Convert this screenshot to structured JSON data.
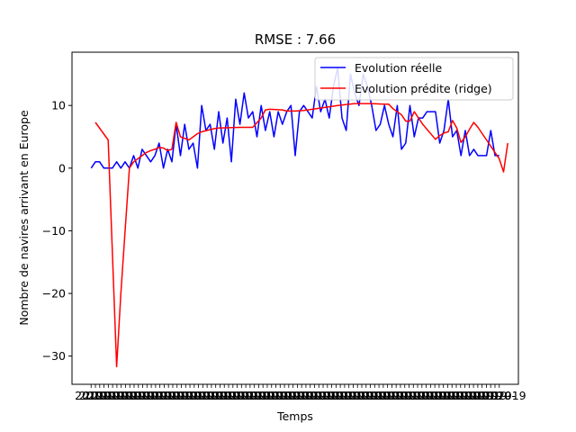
{
  "chart_data": {
    "type": "line",
    "title": "RMSE : 7.66",
    "xlabel": "Temps",
    "ylabel": "Nombre de navires arrivant en Europe",
    "ylim": [
      -34.5,
      18.5
    ],
    "yticks": [
      {
        "value": 10,
        "label": "10"
      },
      {
        "value": 0,
        "label": "0"
      },
      {
        "value": -10,
        "label": "−10"
      },
      {
        "value": -20,
        "label": "−20"
      },
      {
        "value": -30,
        "label": "−30"
      }
    ],
    "xlim": [
      -4.5,
      100.5
    ],
    "xtick_count": 96,
    "xtick_labels_visible": [
      "2019-",
      "2019"
    ],
    "grid": false,
    "legend_position": "top-right",
    "series": [
      {
        "name": "Evolution réelle",
        "color": "#0000ff",
        "x": [
          0,
          1,
          2,
          3,
          4,
          5,
          6,
          7,
          8,
          9,
          10,
          11,
          12,
          13,
          14,
          15,
          16,
          17,
          18,
          19,
          20,
          21,
          22,
          23,
          24,
          25,
          26,
          27,
          28,
          29,
          30,
          31,
          32,
          33,
          34,
          35,
          36,
          37,
          38,
          39,
          40,
          41,
          42,
          43,
          44,
          45,
          46,
          47,
          48,
          49,
          50,
          51,
          52,
          53,
          54,
          55,
          56,
          57,
          58,
          59,
          60,
          61,
          62,
          63,
          64,
          65,
          66,
          67,
          68,
          69,
          70,
          71,
          72,
          73,
          74,
          75,
          76,
          77,
          78,
          79,
          80,
          81,
          82,
          83,
          84,
          85,
          86,
          87,
          88,
          89,
          90,
          91,
          92,
          93,
          94,
          95,
          96
        ],
        "y": [
          0,
          1,
          1,
          0,
          0,
          0,
          1,
          0,
          1,
          0,
          2,
          0,
          3,
          2,
          1,
          2,
          4,
          0,
          3,
          1,
          7,
          2,
          7,
          3,
          4,
          0,
          10,
          6,
          7,
          3,
          9,
          4,
          8,
          1,
          11,
          7,
          12,
          8,
          9,
          5,
          10,
          6,
          9,
          5,
          9,
          7,
          9,
          10,
          2,
          9,
          10,
          9,
          8,
          13,
          9,
          11,
          8,
          13,
          16,
          8,
          6,
          15,
          12,
          10,
          15,
          13,
          10,
          6,
          7,
          10,
          7,
          5,
          10,
          3,
          4,
          10,
          5,
          8,
          8,
          9,
          9,
          9,
          4,
          6,
          11,
          5,
          6,
          2,
          6,
          2,
          3,
          2,
          2,
          2,
          6,
          2,
          2
        ]
      },
      {
        "name": "Evolution prédite (ridge)",
        "color": "#ff0000",
        "x": [
          1,
          4,
          6,
          7,
          8,
          9,
          10,
          11,
          12,
          13,
          14,
          15,
          16,
          17,
          18,
          19,
          20,
          21,
          23,
          25,
          26,
          29,
          30,
          35,
          38,
          40,
          41,
          42,
          45,
          46,
          47,
          48,
          50,
          53,
          58,
          62,
          63,
          66,
          69,
          70,
          71,
          72,
          73,
          74,
          75,
          76,
          77,
          78,
          81,
          82,
          83,
          84,
          85,
          86,
          87,
          88,
          89,
          90,
          91,
          92,
          93,
          94,
          95,
          96,
          97,
          98
        ],
        "y": [
          7.3,
          4.5,
          -31.7,
          -20,
          -10,
          0,
          1,
          1.5,
          2,
          2.5,
          2.8,
          3,
          3.3,
          3.2,
          2.8,
          3,
          7.3,
          5,
          4.5,
          5.5,
          5.8,
          6.3,
          6.4,
          6.5,
          6.5,
          8,
          9.3,
          9.4,
          9.3,
          9.1,
          9.1,
          9.1,
          9.2,
          9.5,
          10,
          10.3,
          10.3,
          10.3,
          10.2,
          10.2,
          9.5,
          9,
          8.5,
          7.5,
          7.5,
          9,
          8,
          7,
          4.6,
          5.2,
          5.6,
          5.8,
          7.6,
          6.4,
          4.1,
          5,
          6.2,
          7.3,
          6.5,
          5.5,
          4.5,
          3.5,
          2.5,
          1.5,
          -0.6,
          4
        ]
      }
    ]
  }
}
